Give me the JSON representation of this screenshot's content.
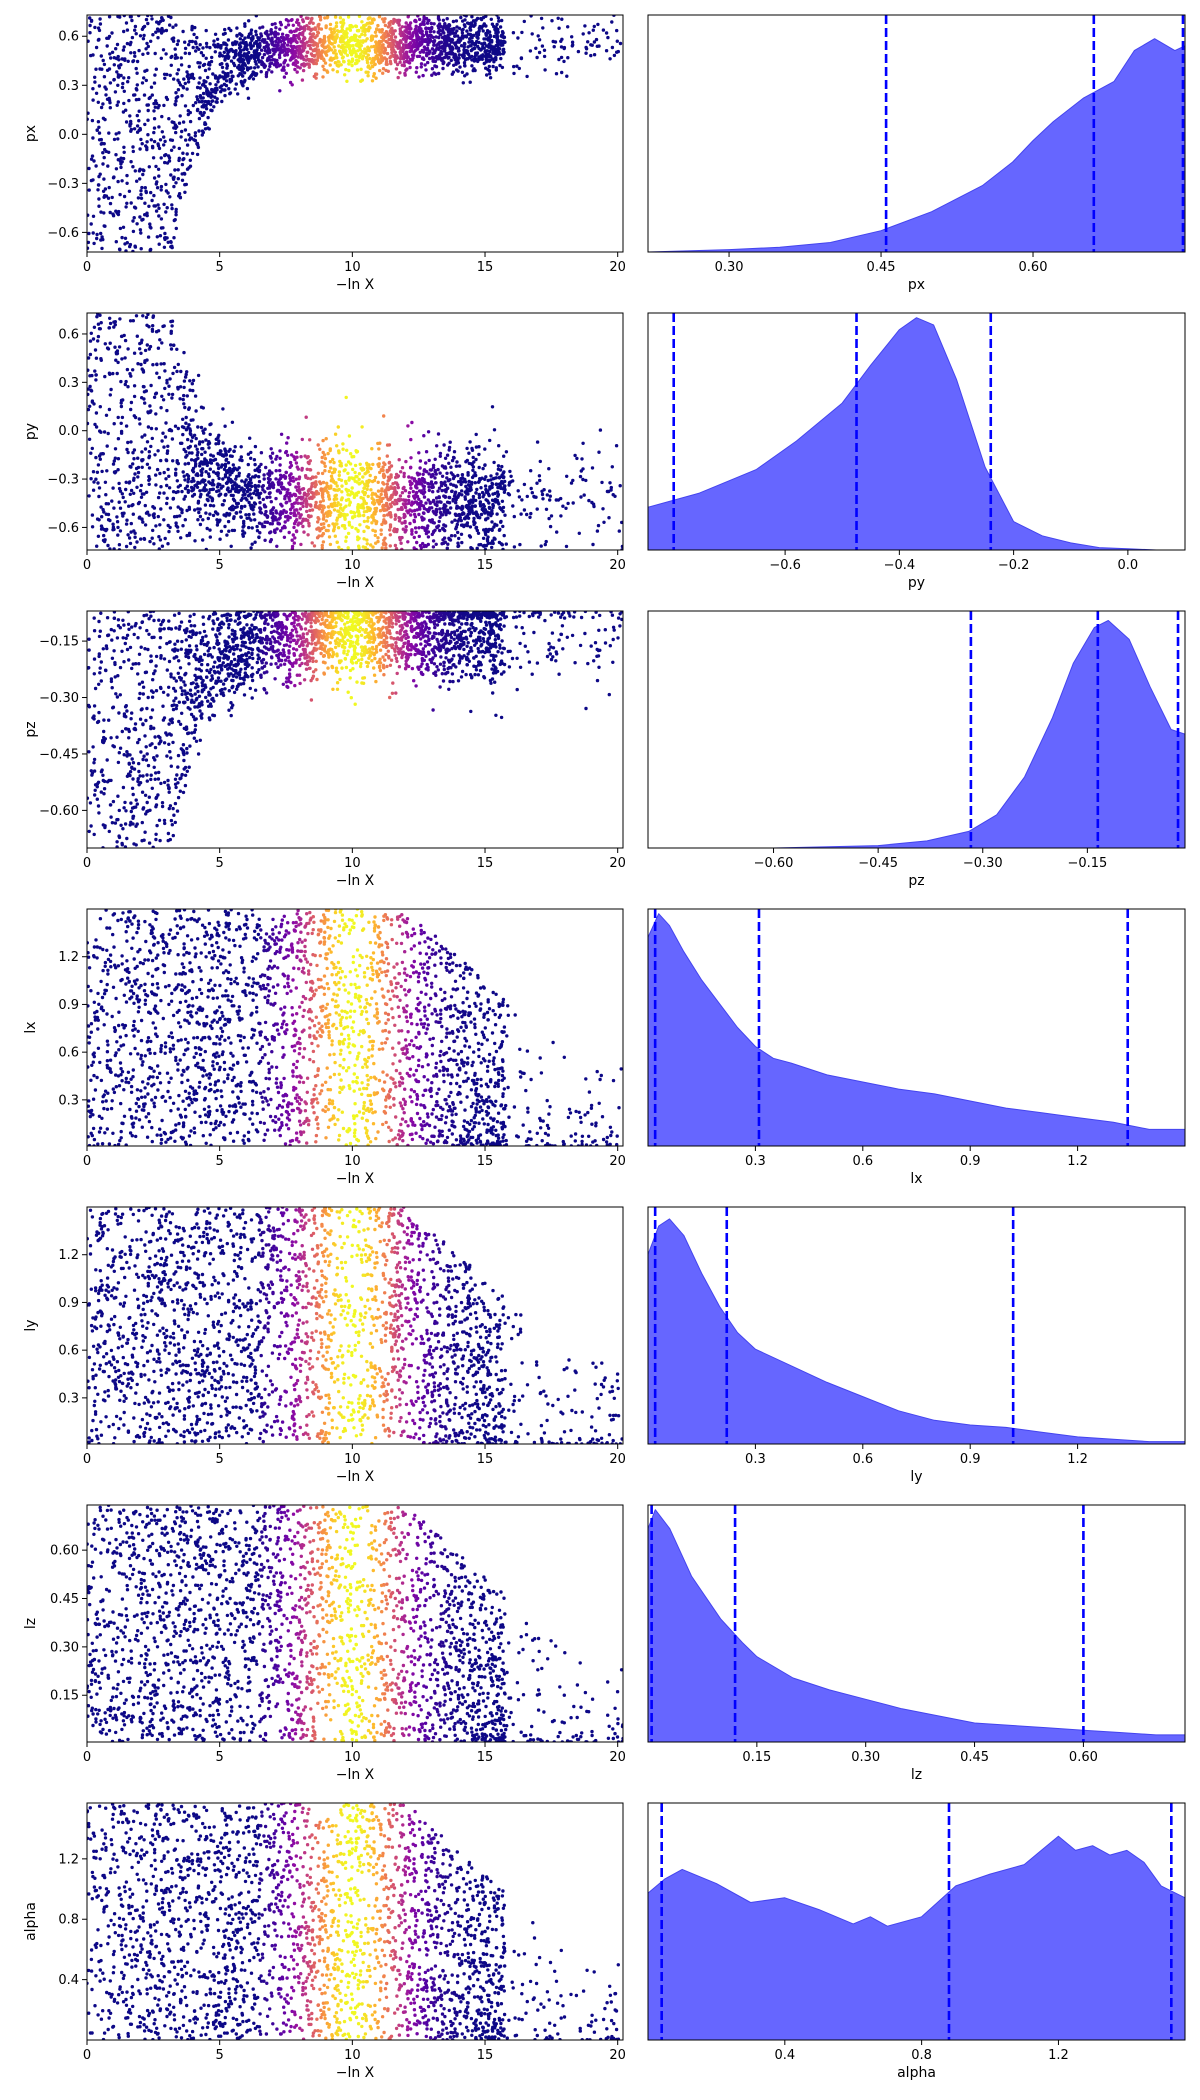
{
  "chart_data": {
    "type": "trace-plot",
    "colormap": "plasma",
    "posterior_fill": "#6666ff",
    "quantile_line_color": "#0000ff",
    "scatter_xlabel": "−ln X",
    "scatter_xlim": [
      0,
      20.2
    ],
    "scatter_xticks": [
      0,
      5,
      10,
      15,
      20
    ],
    "scatter_xtick_labels": [
      "0",
      "5",
      "10",
      "15",
      "20"
    ],
    "scatter_peak_x": 10,
    "rows": [
      {
        "param": "px",
        "scatter_ylabel": "px",
        "scatter_ylim": [
          -0.72,
          0.73
        ],
        "scatter_yticks": [
          -0.6,
          -0.3,
          0.0,
          0.3,
          0.6
        ],
        "scatter_ytick_labels": [
          "−0.6",
          "−0.3",
          "0.0",
          "0.3",
          "0.6"
        ],
        "shape": "converge",
        "converge_to": 0.55,
        "converge_spread": 0.1,
        "posterior_xlabel": "px",
        "posterior_xlim": [
          0.22,
          0.75
        ],
        "posterior_xticks": [
          0.3,
          0.45,
          0.6
        ],
        "posterior_xtick_labels": [
          "0.30",
          "0.45",
          "0.60"
        ],
        "density": {
          "x": [
            0.22,
            0.3,
            0.35,
            0.4,
            0.45,
            0.5,
            0.55,
            0.58,
            0.6,
            0.62,
            0.65,
            0.68,
            0.7,
            0.72,
            0.74,
            0.75
          ],
          "y": [
            0.0,
            0.01,
            0.02,
            0.04,
            0.09,
            0.17,
            0.28,
            0.38,
            0.47,
            0.55,
            0.65,
            0.72,
            0.85,
            0.9,
            0.85,
            0.87
          ]
        },
        "quantiles": [
          0.455,
          0.66,
          0.748
        ]
      },
      {
        "param": "py",
        "scatter_ylabel": "py",
        "scatter_ylim": [
          -0.74,
          0.73
        ],
        "scatter_yticks": [
          -0.6,
          -0.3,
          0.0,
          0.3,
          0.6
        ],
        "scatter_ytick_labels": [
          "−0.6",
          "−0.3",
          "0.0",
          "0.3",
          "0.6"
        ],
        "shape": "converge",
        "converge_to": -0.42,
        "converge_spread": 0.18,
        "posterior_xlabel": "py",
        "posterior_xlim": [
          -0.84,
          0.1
        ],
        "posterior_xticks": [
          -0.6,
          -0.4,
          -0.2,
          0.0
        ],
        "posterior_xtick_labels": [
          "−0.6",
          "−0.4",
          "−0.2",
          "0.0"
        ],
        "density": {
          "x": [
            -0.84,
            -0.75,
            -0.65,
            -0.58,
            -0.5,
            -0.45,
            -0.4,
            -0.37,
            -0.34,
            -0.3,
            -0.25,
            -0.2,
            -0.15,
            -0.1,
            -0.05,
            0.0,
            0.05,
            0.1
          ],
          "y": [
            0.18,
            0.24,
            0.34,
            0.46,
            0.62,
            0.78,
            0.93,
            0.98,
            0.95,
            0.72,
            0.35,
            0.12,
            0.06,
            0.03,
            0.01,
            0.005,
            0.0,
            0.0
          ]
        },
        "quantiles": [
          -0.795,
          -0.475,
          -0.24
        ]
      },
      {
        "param": "pz",
        "scatter_ylabel": "pz",
        "scatter_ylim": [
          -0.7,
          -0.07
        ],
        "scatter_yticks": [
          -0.6,
          -0.45,
          -0.3,
          -0.15
        ],
        "scatter_ytick_labels": [
          "−0.60",
          "−0.45",
          "−0.30",
          "−0.15"
        ],
        "shape": "converge",
        "converge_to": -0.13,
        "converge_spread": 0.07,
        "posterior_xlabel": "pz",
        "posterior_xlim": [
          -0.78,
          -0.01
        ],
        "posterior_xticks": [
          -0.6,
          -0.45,
          -0.3,
          -0.15
        ],
        "posterior_xtick_labels": [
          "−0.60",
          "−0.45",
          "−0.30",
          "−0.15"
        ],
        "density": {
          "x": [
            -0.78,
            -0.6,
            -0.45,
            -0.38,
            -0.32,
            -0.28,
            -0.24,
            -0.2,
            -0.17,
            -0.14,
            -0.12,
            -0.09,
            -0.06,
            -0.03,
            -0.01
          ],
          "y": [
            0.0,
            0.0,
            0.01,
            0.03,
            0.07,
            0.14,
            0.3,
            0.55,
            0.78,
            0.93,
            0.96,
            0.88,
            0.68,
            0.5,
            0.48
          ]
        },
        "quantiles": [
          -0.317,
          -0.135,
          -0.02
        ]
      },
      {
        "param": "lx",
        "scatter_ylabel": "lx",
        "scatter_ylim": [
          0.01,
          1.5
        ],
        "scatter_yticks": [
          0.3,
          0.6,
          0.9,
          1.2
        ],
        "scatter_ytick_labels": [
          "0.3",
          "0.6",
          "0.9",
          "1.2"
        ],
        "shape": "fan",
        "posterior_xlabel": "lx",
        "posterior_xlim": [
          0.0,
          1.5
        ],
        "posterior_xticks": [
          0.3,
          0.6,
          0.9,
          1.2
        ],
        "posterior_xtick_labels": [
          "0.3",
          "0.6",
          "0.9",
          "1.2"
        ],
        "density": {
          "x": [
            0.0,
            0.03,
            0.06,
            0.1,
            0.15,
            0.2,
            0.25,
            0.3,
            0.35,
            0.4,
            0.5,
            0.6,
            0.7,
            0.8,
            0.9,
            1.0,
            1.1,
            1.2,
            1.3,
            1.4,
            1.5
          ],
          "y": [
            0.88,
            0.98,
            0.93,
            0.82,
            0.7,
            0.6,
            0.5,
            0.42,
            0.37,
            0.35,
            0.3,
            0.27,
            0.24,
            0.22,
            0.19,
            0.16,
            0.14,
            0.12,
            0.1,
            0.07,
            0.07
          ]
        },
        "quantiles": [
          0.02,
          0.31,
          1.34
        ]
      },
      {
        "param": "ly",
        "scatter_ylabel": "ly",
        "scatter_ylim": [
          0.01,
          1.5
        ],
        "scatter_yticks": [
          0.3,
          0.6,
          0.9,
          1.2
        ],
        "scatter_ytick_labels": [
          "0.3",
          "0.6",
          "0.9",
          "1.2"
        ],
        "shape": "fan",
        "posterior_xlabel": "ly",
        "posterior_xlim": [
          0.0,
          1.5
        ],
        "posterior_xticks": [
          0.3,
          0.6,
          0.9,
          1.2
        ],
        "posterior_xtick_labels": [
          "0.3",
          "0.6",
          "0.9",
          "1.2"
        ],
        "density": {
          "x": [
            0.0,
            0.03,
            0.06,
            0.1,
            0.15,
            0.2,
            0.25,
            0.3,
            0.4,
            0.5,
            0.6,
            0.7,
            0.8,
            0.9,
            1.0,
            1.1,
            1.2,
            1.3,
            1.4,
            1.5
          ],
          "y": [
            0.8,
            0.92,
            0.95,
            0.88,
            0.72,
            0.58,
            0.47,
            0.4,
            0.33,
            0.26,
            0.2,
            0.14,
            0.1,
            0.08,
            0.07,
            0.05,
            0.03,
            0.02,
            0.01,
            0.01
          ]
        },
        "quantiles": [
          0.02,
          0.22,
          1.02
        ]
      },
      {
        "param": "lz",
        "scatter_ylabel": "lz",
        "scatter_ylim": [
          0.005,
          0.74
        ],
        "scatter_yticks": [
          0.15,
          0.3,
          0.45,
          0.6
        ],
        "scatter_ytick_labels": [
          "0.15",
          "0.30",
          "0.45",
          "0.60"
        ],
        "shape": "fan",
        "posterior_xlabel": "lz",
        "posterior_xlim": [
          0.0,
          0.74
        ],
        "posterior_xticks": [
          0.15,
          0.3,
          0.45,
          0.6
        ],
        "posterior_xtick_labels": [
          "0.15",
          "0.30",
          "0.45",
          "0.60"
        ],
        "density": {
          "x": [
            0.0,
            0.01,
            0.03,
            0.06,
            0.1,
            0.13,
            0.15,
            0.2,
            0.25,
            0.3,
            0.35,
            0.4,
            0.45,
            0.5,
            0.55,
            0.6,
            0.65,
            0.7,
            0.74
          ],
          "y": [
            0.9,
            0.98,
            0.9,
            0.7,
            0.52,
            0.42,
            0.36,
            0.27,
            0.22,
            0.18,
            0.14,
            0.11,
            0.08,
            0.07,
            0.06,
            0.05,
            0.04,
            0.03,
            0.03
          ]
        },
        "quantiles": [
          0.005,
          0.12,
          0.6
        ]
      },
      {
        "param": "alpha",
        "scatter_ylabel": "alpha",
        "scatter_ylim": [
          0.0,
          1.57
        ],
        "scatter_yticks": [
          0.4,
          0.8,
          1.2
        ],
        "scatter_ytick_labels": [
          "0.4",
          "0.8",
          "1.2"
        ],
        "shape": "fan",
        "posterior_xlabel": "alpha",
        "posterior_xlim": [
          0.0,
          1.57
        ],
        "posterior_xticks": [
          0.4,
          0.8,
          1.2
        ],
        "posterior_xtick_labels": [
          "0.4",
          "0.8",
          "1.2"
        ],
        "density": {
          "x": [
            0.0,
            0.05,
            0.1,
            0.2,
            0.3,
            0.4,
            0.5,
            0.6,
            0.65,
            0.7,
            0.8,
            0.9,
            1.0,
            1.1,
            1.15,
            1.2,
            1.25,
            1.3,
            1.35,
            1.4,
            1.45,
            1.5,
            1.57
          ],
          "y": [
            0.62,
            0.68,
            0.72,
            0.66,
            0.58,
            0.6,
            0.55,
            0.49,
            0.52,
            0.48,
            0.52,
            0.65,
            0.7,
            0.74,
            0.8,
            0.86,
            0.8,
            0.82,
            0.78,
            0.8,
            0.75,
            0.65,
            0.6
          ]
        },
        "quantiles": [
          0.04,
          0.88,
          1.53
        ]
      }
    ]
  }
}
